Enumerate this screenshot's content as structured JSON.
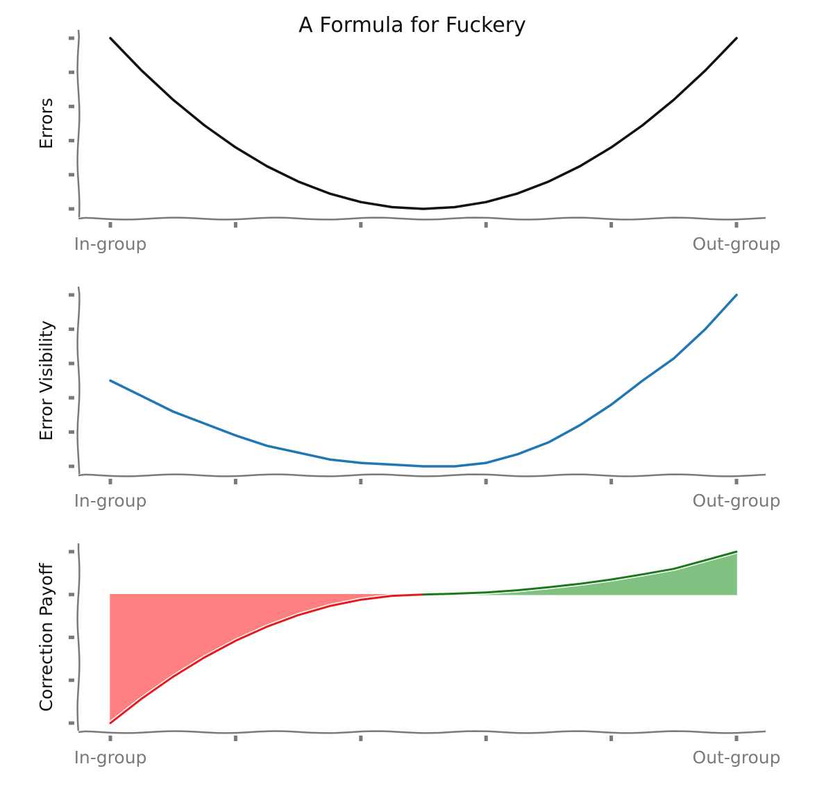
{
  "title": "A Formula for Fuckery",
  "colors": {
    "errors_line": "#111111",
    "visibility_line": "#1f77b4",
    "negative_line": "#e41a1c",
    "negative_fill": "#ff8080",
    "positive_line": "#1a7a1a",
    "positive_fill": "#80c080",
    "axis": "#7a7a7a"
  },
  "chart_data": [
    {
      "type": "line",
      "title": "A Formula for Fuckery",
      "xlabel": "",
      "ylabel": "Errors",
      "x_tick_labels": [
        "In-group",
        "",
        "",
        "",
        "",
        "Out-group"
      ],
      "y_tick_labels": [
        "",
        "",
        "",
        "",
        "",
        ""
      ],
      "xlim": [
        0,
        1
      ],
      "ylim": [
        0,
        1
      ],
      "grid": false,
      "series": [
        {
          "x": [
            0,
            0.05,
            0.1,
            0.15,
            0.2,
            0.25,
            0.3,
            0.35,
            0.4,
            0.45,
            0.5,
            0.55,
            0.6,
            0.65,
            0.7,
            0.75,
            0.8,
            0.85,
            0.9,
            0.95,
            1
          ],
          "values": [
            1.0,
            0.81,
            0.64,
            0.49,
            0.36,
            0.25,
            0.16,
            0.09,
            0.04,
            0.01,
            0.0,
            0.01,
            0.04,
            0.09,
            0.16,
            0.25,
            0.36,
            0.49,
            0.64,
            0.81,
            1.0
          ]
        }
      ]
    },
    {
      "type": "line",
      "xlabel": "",
      "ylabel": "Error Visibility",
      "x_tick_labels": [
        "In-group",
        "",
        "",
        "",
        "",
        "Out-group"
      ],
      "y_tick_labels": [
        "",
        "",
        "",
        "",
        "",
        ""
      ],
      "xlim": [
        0,
        1
      ],
      "ylim": [
        0,
        1
      ],
      "grid": false,
      "series": [
        {
          "x": [
            0,
            0.05,
            0.1,
            0.15,
            0.2,
            0.25,
            0.3,
            0.35,
            0.4,
            0.45,
            0.5,
            0.55,
            0.6,
            0.65,
            0.7,
            0.75,
            0.8,
            0.85,
            0.9,
            0.95,
            1
          ],
          "values": [
            0.5,
            0.41,
            0.32,
            0.25,
            0.18,
            0.12,
            0.08,
            0.04,
            0.02,
            0.01,
            0.0,
            0.0,
            0.02,
            0.07,
            0.14,
            0.24,
            0.36,
            0.5,
            0.63,
            0.8,
            1.0
          ]
        }
      ]
    },
    {
      "type": "area",
      "xlabel": "",
      "ylabel": "Correction Payoff",
      "x_tick_labels": [
        "In-group",
        "",
        "",
        "",
        "",
        "Out-group"
      ],
      "y_tick_labels": [
        "",
        "",
        "",
        "",
        ""
      ],
      "xlim": [
        0,
        1
      ],
      "ylim": [
        -3,
        1
      ],
      "baseline": 0,
      "grid": false,
      "series": [
        {
          "x": [
            0,
            0.05,
            0.1,
            0.15,
            0.2,
            0.25,
            0.3,
            0.35,
            0.4,
            0.45,
            0.5
          ],
          "values": [
            -3.0,
            -2.43,
            -1.92,
            -1.47,
            -1.08,
            -0.75,
            -0.48,
            -0.27,
            -0.12,
            -0.03,
            0.0
          ]
        },
        {
          "x": [
            0.5,
            0.55,
            0.6,
            0.65,
            0.7,
            0.75,
            0.8,
            0.85,
            0.9,
            0.95,
            1
          ],
          "values": [
            0.0,
            0.02,
            0.05,
            0.1,
            0.17,
            0.25,
            0.35,
            0.47,
            0.6,
            0.8,
            1.0
          ]
        }
      ]
    }
  ]
}
